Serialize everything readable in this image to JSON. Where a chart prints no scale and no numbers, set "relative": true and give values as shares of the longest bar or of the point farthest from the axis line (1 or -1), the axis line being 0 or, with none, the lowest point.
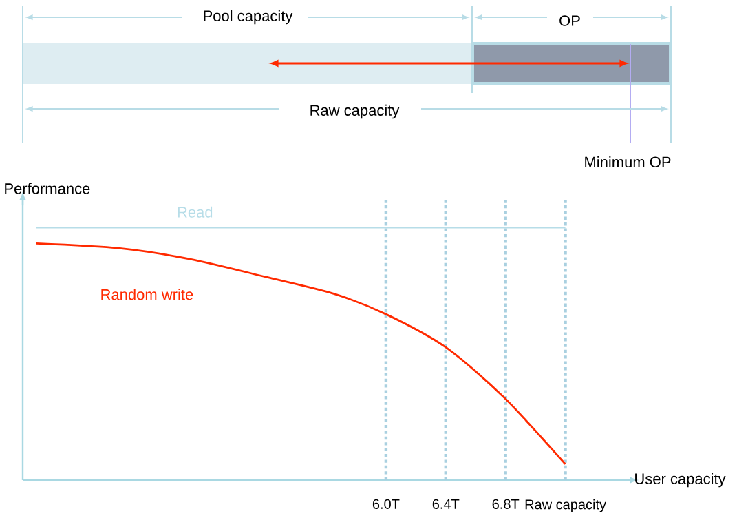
{
  "chart_data": [
    {
      "type": "other",
      "annotations": [
        "Pool capacity",
        "OP",
        "Raw capacity",
        "Minimum OP"
      ]
    },
    {
      "type": "line",
      "relative": true,
      "xlabel": "User capacity",
      "ylabel": "Performance",
      "xlim": [
        3.57,
        7.63
      ],
      "xticks": [
        {
          "value": 6.0,
          "label": "6.0T"
        },
        {
          "value": 6.4,
          "label": "6.4T"
        },
        {
          "value": 6.8,
          "label": "6.8T"
        },
        {
          "value": 7.2,
          "label": "Raw capacity"
        }
      ],
      "ref_lines": [
        {
          "axis": "x",
          "value": 6.0,
          "color": "#a9d0e0",
          "line_style": "dotted"
        },
        {
          "axis": "x",
          "value": 6.4,
          "color": "#a9d0e0",
          "line_style": "dotted"
        },
        {
          "axis": "x",
          "value": 6.8,
          "color": "#a9d0e0",
          "line_style": "dotted"
        },
        {
          "axis": "x",
          "value": 7.2,
          "color": "#a9d0e0",
          "line_style": "dotted"
        }
      ],
      "series": [
        {
          "name": "Read",
          "color": "#b7dde8",
          "x": [
            3.66,
            7.2
          ],
          "values": [
            1,
            1
          ]
        },
        {
          "name": "Random write",
          "color": "#ff2a00",
          "x": [
            3.66,
            4.22,
            4.69,
            5.2,
            5.65,
            6.0,
            6.4,
            6.79,
            7.2
          ],
          "values": [
            0.937,
            0.918,
            0.875,
            0.804,
            0.738,
            0.657,
            0.526,
            0.327,
            0.063
          ]
        }
      ]
    }
  ]
}
